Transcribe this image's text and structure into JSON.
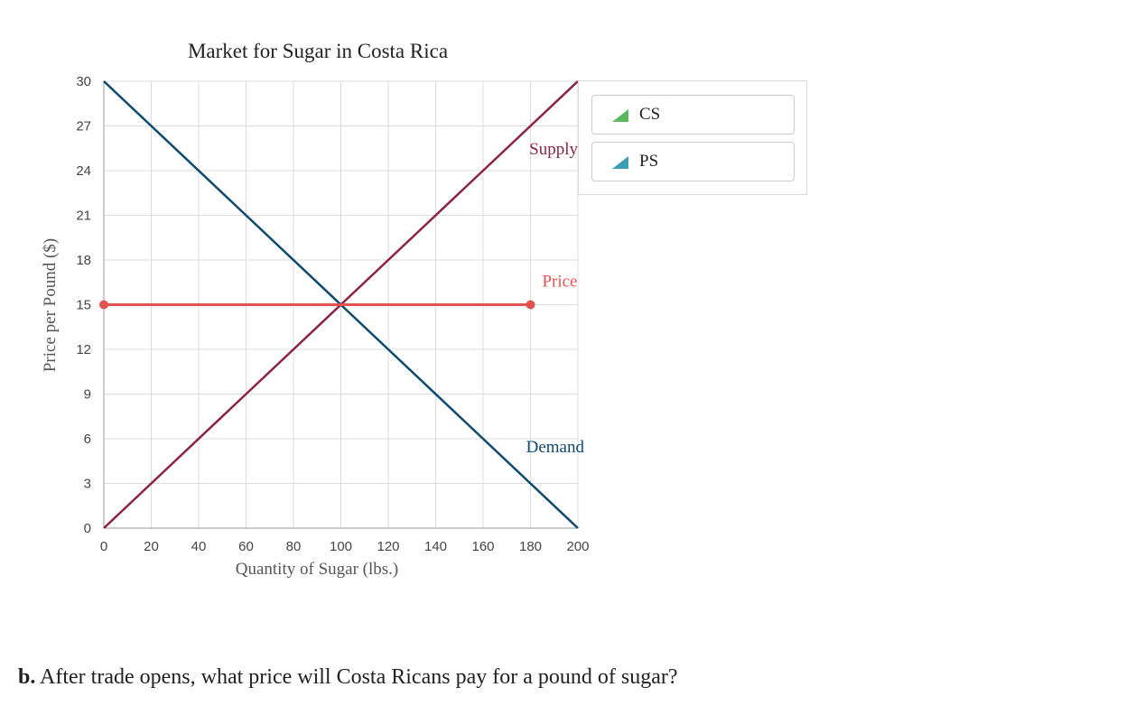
{
  "chart_data": {
    "type": "line",
    "title": "Market for Sugar in Costa Rica",
    "xlabel": "Quantity of Sugar (lbs.)",
    "ylabel": "Price per Pound ($)",
    "xlim": [
      0,
      200
    ],
    "ylim": [
      0,
      30
    ],
    "xticks": [
      0,
      20,
      40,
      60,
      80,
      100,
      120,
      140,
      160,
      180,
      200
    ],
    "yticks": [
      0,
      3,
      6,
      9,
      12,
      15,
      18,
      21,
      24,
      27,
      30
    ],
    "grid": true,
    "series": [
      {
        "name": "Demand",
        "color": "#0d4a6e",
        "points": [
          [
            0,
            30
          ],
          [
            200,
            0
          ]
        ]
      },
      {
        "name": "Supply",
        "color": "#8b2346",
        "points": [
          [
            0,
            0
          ],
          [
            200,
            30
          ]
        ]
      },
      {
        "name": "Price",
        "color": "#e0534f",
        "points": [
          [
            0,
            15
          ],
          [
            180,
            15
          ]
        ],
        "markers": true
      }
    ],
    "legend": {
      "position": "top-right",
      "entries": [
        "CS",
        "PS"
      ]
    }
  },
  "legend_colors": {
    "cs": "#5cb85c",
    "ps": "#3a9fb5"
  },
  "question": {
    "label": "b.",
    "text": " After trade opens, what price will Costa Ricans pay for a pound of sugar?"
  }
}
